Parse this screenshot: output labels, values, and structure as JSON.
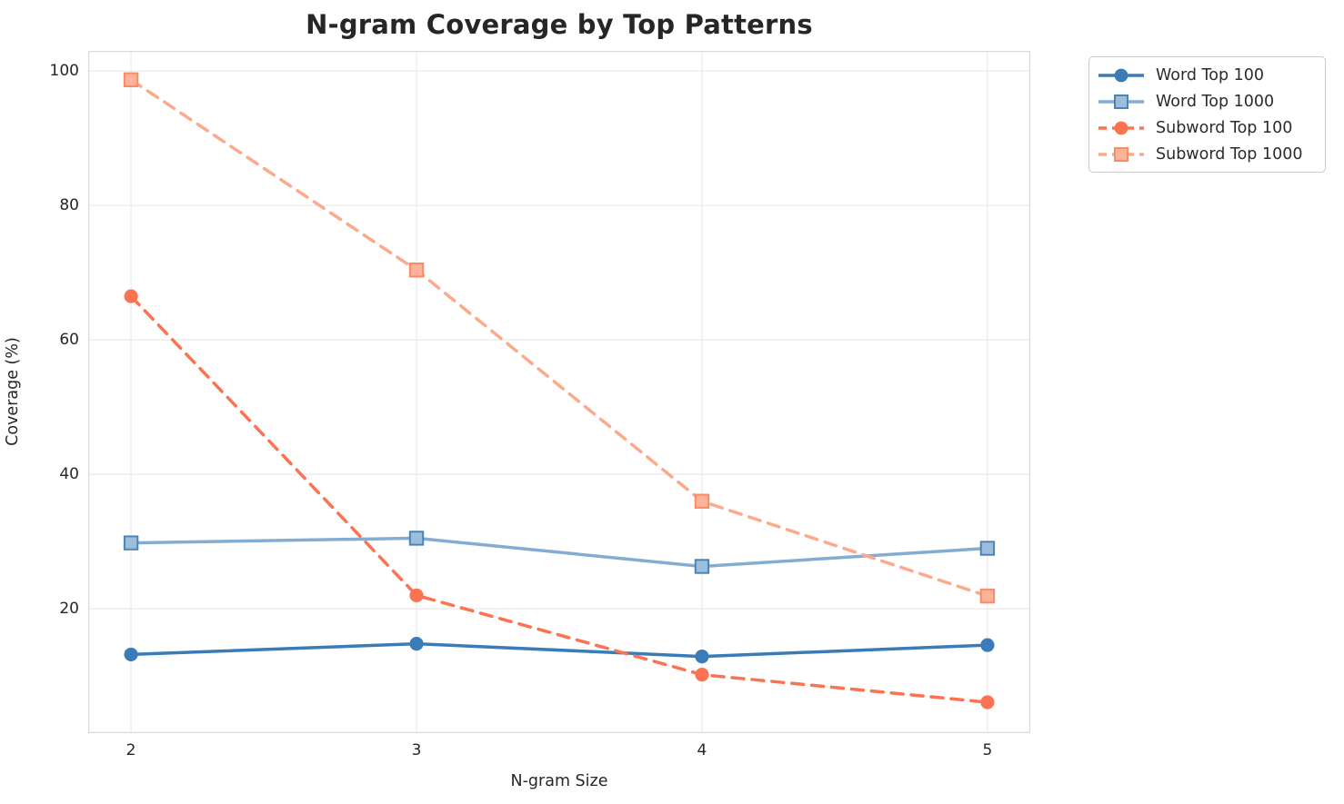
{
  "chart_data": {
    "type": "line",
    "title": "N-gram Coverage by Top Patterns",
    "xlabel": "N-gram Size",
    "ylabel": "Coverage (%)",
    "x": [
      2,
      3,
      4,
      5
    ],
    "xticks": [
      "2",
      "3",
      "4",
      "5"
    ],
    "yticks": [
      20,
      40,
      60,
      80,
      100
    ],
    "xlim": [
      1.85,
      5.15
    ],
    "ylim": [
      1.5,
      103
    ],
    "grid": true,
    "legend_position": "outside-upper-right",
    "colors": {
      "grid": "#eaeaee",
      "spine": "#d9d9de",
      "text": "#262626",
      "legend_border": "#cccccc"
    },
    "series": [
      {
        "name": "Word Top 100",
        "values": [
          13.2,
          14.8,
          12.9,
          14.6
        ],
        "color": "#3a7cb8",
        "line_style": "solid",
        "marker": "circle",
        "marker_fill": "#3a7cb8",
        "marker_edge": "#3a7cb8"
      },
      {
        "name": "Word Top 1000",
        "values": [
          29.8,
          30.5,
          26.3,
          29.0
        ],
        "color": "#84acd2",
        "line_style": "solid",
        "marker": "square",
        "marker_fill": "#9dbeda",
        "marker_edge": "#4b84b9"
      },
      {
        "name": "Subword Top 100",
        "values": [
          66.5,
          22.0,
          10.2,
          6.1
        ],
        "color": "#fb7350",
        "line_style": "dashed",
        "marker": "circle",
        "marker_fill": "#fb7350",
        "marker_edge": "#fb7350"
      },
      {
        "name": "Subword Top 1000",
        "values": [
          98.7,
          70.4,
          36.0,
          21.9
        ],
        "color": "#fcaa8c",
        "line_style": "dashed",
        "marker": "square",
        "marker_fill": "#fdb397",
        "marker_edge": "#fb8a67"
      }
    ]
  }
}
